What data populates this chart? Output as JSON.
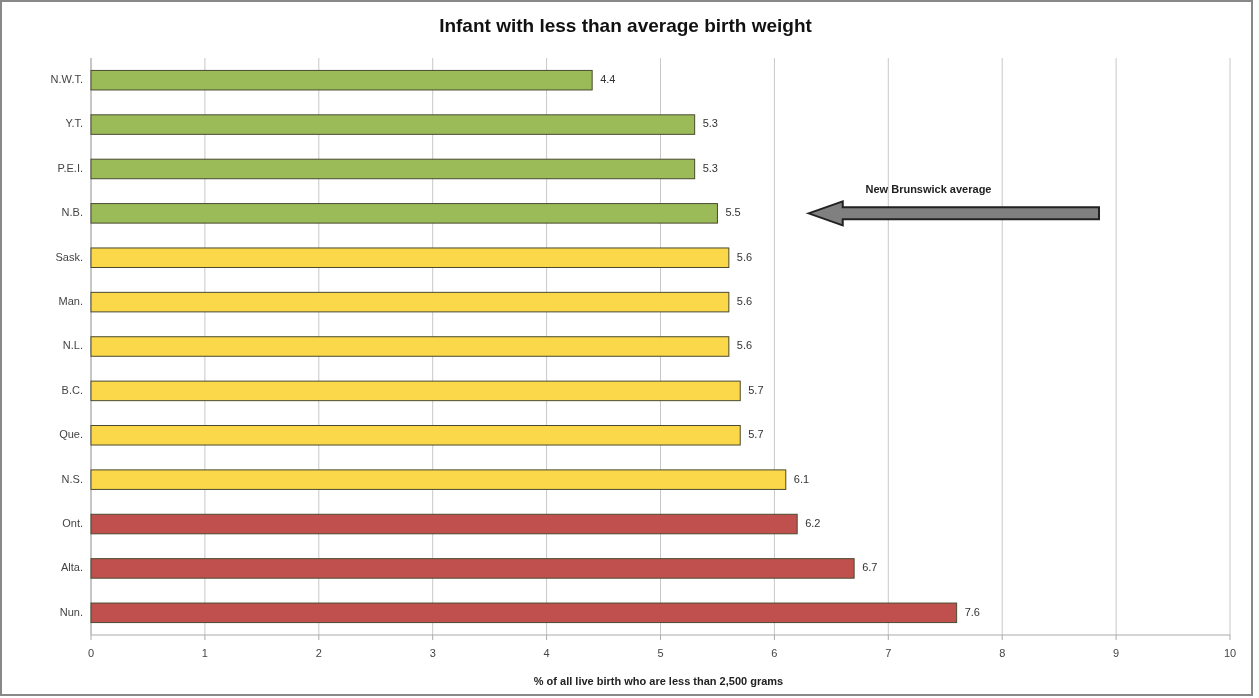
{
  "chart_data": {
    "type": "bar",
    "orientation": "horizontal",
    "title": "Infant with less than average birth weight",
    "xlabel": "% of all live birth who are less than 2,500 grams",
    "categories": [
      "N.W.T.",
      "Y.T.",
      "P.E.I.",
      "N.B.",
      "Sask.",
      "Man.",
      "N.L.",
      "B.C.",
      "Que.",
      "N.S.",
      "Ont.",
      "Alta.",
      "Nun."
    ],
    "values": [
      4.4,
      5.3,
      5.3,
      5.5,
      5.6,
      5.6,
      5.6,
      5.7,
      5.7,
      6.1,
      6.2,
      6.7,
      7.6
    ],
    "colors": [
      "#9bbb59",
      "#9bbb59",
      "#9bbb59",
      "#9bbb59",
      "#fad84a",
      "#fad84a",
      "#fad84a",
      "#fad84a",
      "#fad84a",
      "#fad84a",
      "#c0504d",
      "#c0504d",
      "#c0504d"
    ],
    "xlim": [
      0,
      10
    ],
    "xticks": [
      0,
      1,
      2,
      3,
      4,
      5,
      6,
      7,
      8,
      9,
      10
    ],
    "grid": "x",
    "data_labels": true,
    "annotations": [
      "New Brunswick average"
    ]
  }
}
